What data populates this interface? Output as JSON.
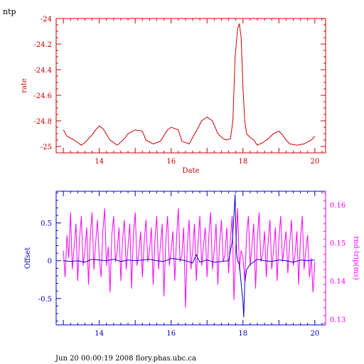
{
  "header": {
    "label": "ntp"
  },
  "footer": {
    "text": "Jun 20 00:00:19 2008 flory.phas.ubc.ca"
  },
  "colors": {
    "red": "#cc0000",
    "blue": "#0000cc",
    "magenta": "#ff00ff",
    "axis_black": "#000000"
  },
  "chart_data": [
    {
      "type": "line",
      "title": "",
      "xlabel": "Date",
      "ylabel": "rate",
      "xlim": [
        12.8,
        20.3
      ],
      "ylim": [
        -25.05,
        -24.0
      ],
      "xticks": [
        14,
        16,
        18,
        20
      ],
      "xtick_labels": [
        "14",
        "16",
        "18",
        "20"
      ],
      "yticks": [
        -24,
        -24.2,
        -24.4,
        -24.6,
        -24.8,
        -25
      ],
      "ytick_labels": [
        "-24",
        "-24.2",
        "-24.4",
        "-24.6",
        "-24.8",
        "-25"
      ],
      "grid": false,
      "series": [
        {
          "color": "#cc0000",
          "x": [
            13.0,
            13.1,
            13.3,
            13.5,
            13.6,
            13.8,
            13.9,
            14.0,
            14.1,
            14.3,
            14.5,
            14.7,
            14.8,
            15.0,
            15.2,
            15.3,
            15.5,
            15.7,
            15.9,
            16.0,
            16.2,
            16.3,
            16.5,
            16.6,
            16.7,
            16.85,
            17.0,
            17.15,
            17.3,
            17.45,
            17.55,
            17.65,
            17.72,
            17.78,
            17.85,
            17.9,
            17.95,
            18.0,
            18.05,
            18.1,
            18.2,
            18.3,
            18.4,
            18.55,
            18.7,
            18.85,
            19.0,
            19.1,
            19.2,
            19.3,
            19.5,
            19.7,
            19.9,
            20.0
          ],
          "y": [
            -24.87,
            -24.92,
            -24.95,
            -24.99,
            -24.97,
            -24.91,
            -24.87,
            -24.84,
            -24.86,
            -24.95,
            -24.99,
            -24.94,
            -24.9,
            -24.87,
            -24.88,
            -24.95,
            -24.98,
            -24.96,
            -24.87,
            -24.85,
            -24.87,
            -24.96,
            -24.98,
            -24.93,
            -24.88,
            -24.8,
            -24.77,
            -24.8,
            -24.9,
            -24.94,
            -24.95,
            -24.94,
            -24.8,
            -24.3,
            -24.08,
            -24.04,
            -24.15,
            -24.55,
            -24.8,
            -24.9,
            -24.93,
            -24.95,
            -24.99,
            -24.97,
            -24.94,
            -24.9,
            -24.88,
            -24.91,
            -24.95,
            -24.98,
            -24.99,
            -24.98,
            -24.95,
            -24.92
          ]
        }
      ]
    },
    {
      "type": "line",
      "title": "",
      "xlabel": "",
      "ylabel": "Offset",
      "ylabel_right": "rnd-trip(ms)",
      "xlim": [
        12.8,
        20.3
      ],
      "ylim": [
        -0.85,
        0.92
      ],
      "ylim_right": [
        0.1285,
        0.1635
      ],
      "xticks": [
        14,
        16,
        18,
        20
      ],
      "xtick_labels": [
        "14",
        "16",
        "18",
        "20"
      ],
      "yticks": [
        0.5,
        0,
        -0.5
      ],
      "ytick_labels": [
        "0.5",
        "0",
        "-0.5"
      ],
      "yticks_right": [
        0.16,
        0.15,
        0.14,
        0.13
      ],
      "ytick_labels_right": [
        "0.16",
        "0.15",
        "0.14",
        "0.13"
      ],
      "grid": false,
      "series": [
        {
          "axis": "left",
          "color": "#0000cc",
          "x": [
            13.0,
            13.2,
            13.4,
            13.6,
            13.8,
            14.0,
            14.2,
            14.4,
            14.6,
            14.8,
            15.0,
            15.2,
            15.4,
            15.6,
            15.8,
            16.0,
            16.2,
            16.4,
            16.6,
            16.7,
            16.8,
            17.0,
            17.2,
            17.4,
            17.6,
            17.7,
            17.75,
            17.78,
            17.8,
            17.82,
            17.85,
            17.9,
            18.0,
            18.02,
            18.05,
            18.1,
            18.2,
            18.4,
            18.6,
            18.8,
            19.0,
            19.2,
            19.4,
            19.6,
            19.8,
            20.0
          ],
          "y": [
            0.0,
            -0.01,
            0.0,
            -0.02,
            0.02,
            0.01,
            0.0,
            0.02,
            -0.01,
            0.01,
            0.0,
            0.01,
            0.02,
            0.0,
            -0.01,
            0.03,
            0.02,
            0.0,
            -0.03,
            0.08,
            -0.02,
            0.01,
            -0.02,
            -0.01,
            0.0,
            0.25,
            0.6,
            0.88,
            0.45,
            0.1,
            0.0,
            -0.05,
            -0.55,
            -0.75,
            -0.3,
            -0.12,
            -0.05,
            0.02,
            0.0,
            -0.01,
            0.01,
            0.0,
            -0.02,
            0.01,
            0.0,
            0.01
          ]
        },
        {
          "axis": "right",
          "color": "#ff00ff",
          "x": [
            13.0,
            13.05,
            13.1,
            13.15,
            13.2,
            13.25,
            13.3,
            13.35,
            13.4,
            13.45,
            13.5,
            13.55,
            13.6,
            13.65,
            13.7,
            13.75,
            13.8,
            13.85,
            13.9,
            13.95,
            14.0,
            14.05,
            14.1,
            14.15,
            14.2,
            14.25,
            14.3,
            14.35,
            14.4,
            14.45,
            14.5,
            14.55,
            14.6,
            14.65,
            14.7,
            14.75,
            14.8,
            14.85,
            14.9,
            14.95,
            15.0,
            15.05,
            15.1,
            15.15,
            15.2,
            15.25,
            15.3,
            15.35,
            15.4,
            15.45,
            15.5,
            15.55,
            15.6,
            15.65,
            15.7,
            15.75,
            15.8,
            15.85,
            15.9,
            15.95,
            16.0,
            16.05,
            16.1,
            16.15,
            16.2,
            16.25,
            16.3,
            16.35,
            16.4,
            16.45,
            16.5,
            16.55,
            16.6,
            16.65,
            16.7,
            16.75,
            16.8,
            16.85,
            16.9,
            16.95,
            17.0,
            17.05,
            17.1,
            17.15,
            17.2,
            17.25,
            17.3,
            17.35,
            17.4,
            17.45,
            17.5,
            17.55,
            17.6,
            17.65,
            17.7,
            17.75,
            17.8,
            17.85,
            17.9,
            17.95,
            18.0,
            18.05,
            18.1,
            18.15,
            18.2,
            18.25,
            18.3,
            18.35,
            18.4,
            18.45,
            18.5,
            18.55,
            18.6,
            18.65,
            18.7,
            18.75,
            18.8,
            18.85,
            18.9,
            18.95,
            19.0,
            19.05,
            19.1,
            19.15,
            19.2,
            19.25,
            19.3,
            19.35,
            19.4,
            19.45,
            19.5,
            19.55,
            19.6,
            19.65,
            19.7,
            19.75,
            19.8,
            19.85,
            19.9,
            19.95,
            20.0
          ],
          "y": [
            0.148,
            0.141,
            0.152,
            0.146,
            0.158,
            0.143,
            0.149,
            0.155,
            0.14,
            0.151,
            0.157,
            0.144,
            0.148,
            0.154,
            0.139,
            0.152,
            0.158,
            0.143,
            0.15,
            0.156,
            0.146,
            0.141,
            0.153,
            0.159,
            0.144,
            0.149,
            0.137,
            0.152,
            0.157,
            0.145,
            0.148,
            0.154,
            0.14,
            0.151,
            0.156,
            0.143,
            0.149,
            0.155,
            0.138,
            0.152,
            0.158,
            0.144,
            0.147,
            0.153,
            0.141,
            0.15,
            0.156,
            0.145,
            0.148,
            0.154,
            0.139,
            0.151,
            0.157,
            0.143,
            0.149,
            0.155,
            0.136,
            0.15,
            0.157,
            0.144,
            0.148,
            0.153,
            0.14,
            0.151,
            0.159,
            0.145,
            0.147,
            0.154,
            0.133,
            0.149,
            0.156,
            0.143,
            0.148,
            0.155,
            0.14,
            0.15,
            0.157,
            0.144,
            0.149,
            0.154,
            0.141,
            0.152,
            0.158,
            0.143,
            0.148,
            0.155,
            0.139,
            0.15,
            0.156,
            0.145,
            0.147,
            0.154,
            0.142,
            0.151,
            0.157,
            0.135,
            0.149,
            0.159,
            0.143,
            0.148,
            0.146,
            0.14,
            0.152,
            0.157,
            0.144,
            0.149,
            0.155,
            0.138,
            0.151,
            0.158,
            0.145,
            0.147,
            0.153,
            0.141,
            0.15,
            0.156,
            0.143,
            0.148,
            0.154,
            0.14,
            0.151,
            0.157,
            0.145,
            0.149,
            0.153,
            0.142,
            0.15,
            0.156,
            0.144,
            0.147,
            0.153,
            0.139,
            0.151,
            0.157,
            0.143,
            0.148,
            0.152,
            0.141,
            0.146,
            0.137,
            0.145
          ]
        }
      ]
    }
  ]
}
